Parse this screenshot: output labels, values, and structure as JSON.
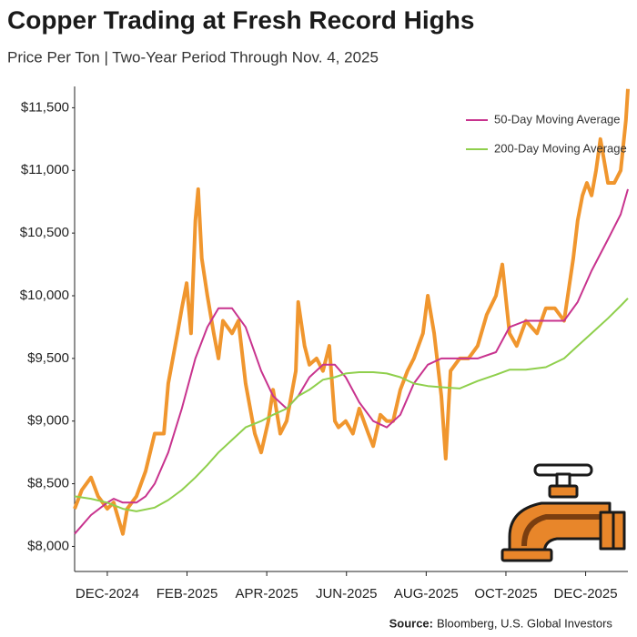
{
  "chart_data": {
    "type": "line",
    "title": "Copper Trading at Fresh Record Highs",
    "subtitle": "Price Per Ton | Two-Year Period Through Nov. 4, 2025",
    "source_label": "Source:",
    "source": "Bloomberg, U.S. Global Investors",
    "xlim": [
      -0.82,
      13.06
    ],
    "xticks": [
      {
        "value": 0,
        "label": "DEC-2024"
      },
      {
        "value": 2,
        "label": "FEB-2025"
      },
      {
        "value": 4,
        "label": "APR-2025"
      },
      {
        "value": 6,
        "label": "JUN-2025"
      },
      {
        "value": 8,
        "label": "AUG-2025"
      },
      {
        "value": 10,
        "label": "OCT-2025"
      },
      {
        "value": 12,
        "label": "DEC-2025"
      }
    ],
    "ylim": [
      7800,
      11670
    ],
    "yticks": [
      {
        "value": 8000,
        "label": "$8,000"
      },
      {
        "value": 8500,
        "label": "$8,500"
      },
      {
        "value": 9000,
        "label": "$9,000"
      },
      {
        "value": 9500,
        "label": "$9,500"
      },
      {
        "value": 10000,
        "label": "$10,000"
      },
      {
        "value": 10500,
        "label": "$10,500"
      },
      {
        "value": 11000,
        "label": "$11,000"
      },
      {
        "value": 11500,
        "label": "$11,500"
      }
    ],
    "grid": false,
    "legend": "top-right",
    "series": [
      {
        "color": "#f0962e",
        "x": [
          -0.82,
          -0.64,
          -0.41,
          -0.23,
          0,
          0.16,
          0.39,
          0.5,
          0.73,
          0.96,
          1.19,
          1.42,
          1.53,
          1.76,
          1.87,
          1.99,
          2.1,
          2.21,
          2.28,
          2.37,
          2.51,
          2.67,
          2.79,
          2.9,
          3.13,
          3.29,
          3.47,
          3.7,
          3.86,
          4.04,
          4.16,
          4.34,
          4.5,
          4.73,
          4.79,
          4.95,
          5.07,
          5.25,
          5.41,
          5.57,
          5.71,
          5.8,
          5.98,
          6.16,
          6.32,
          6.55,
          6.67,
          6.85,
          7.01,
          7.17,
          7.35,
          7.53,
          7.69,
          7.92,
          8.04,
          8.2,
          8.38,
          8.49,
          8.61,
          8.84,
          9.06,
          9.29,
          9.52,
          9.75,
          9.91,
          10.09,
          10.27,
          10.5,
          10.78,
          11.0,
          11.23,
          11.46,
          11.69,
          11.8,
          11.92,
          12.03,
          12.15,
          12.26,
          12.37,
          12.56,
          12.72,
          12.88,
          13.01,
          13.06
        ],
        "values": [
          8300,
          8450,
          8550,
          8400,
          8300,
          8350,
          8100,
          8300,
          8400,
          8600,
          8900,
          8900,
          9300,
          9700,
          9900,
          10100,
          9700,
          10600,
          10850,
          10300,
          10000,
          9700,
          9500,
          9800,
          9700,
          9800,
          9300,
          8900,
          8750,
          9000,
          9250,
          8900,
          9000,
          9400,
          9950,
          9600,
          9450,
          9500,
          9400,
          9600,
          9000,
          8950,
          9000,
          8900,
          9100,
          8900,
          8800,
          9050,
          9000,
          9000,
          9250,
          9400,
          9500,
          9700,
          10000,
          9700,
          9200,
          8700,
          9400,
          9500,
          9500,
          9600,
          9850,
          10000,
          10250,
          9700,
          9600,
          9800,
          9700,
          9900,
          9900,
          9800,
          10300,
          10600,
          10800,
          10900,
          10800,
          11000,
          11250,
          10900,
          10900,
          11000,
          11400,
          11650
        ]
      },
      {
        "name": "50-Day Moving Average",
        "color": "#c8338e",
        "x": [
          -0.82,
          -0.41,
          0,
          0.16,
          0.39,
          0.73,
          0.96,
          1.19,
          1.53,
          1.87,
          2.21,
          2.51,
          2.79,
          3.13,
          3.47,
          3.86,
          4.16,
          4.5,
          4.79,
          5.07,
          5.41,
          5.71,
          5.98,
          6.32,
          6.67,
          7.01,
          7.35,
          7.69,
          8.04,
          8.38,
          8.84,
          9.29,
          9.75,
          10.09,
          10.5,
          11.0,
          11.46,
          11.8,
          12.15,
          12.56,
          12.88,
          13.06
        ],
        "values": [
          8100,
          8250,
          8350,
          8380,
          8350,
          8350,
          8400,
          8500,
          8750,
          9100,
          9500,
          9750,
          9900,
          9900,
          9750,
          9400,
          9200,
          9100,
          9200,
          9350,
          9450,
          9450,
          9350,
          9150,
          9000,
          8950,
          9050,
          9300,
          9450,
          9500,
          9500,
          9500,
          9550,
          9750,
          9800,
          9800,
          9800,
          9950,
          10200,
          10450,
          10650,
          10850
        ]
      },
      {
        "name": "200-Day Moving Average",
        "color": "#8fcf4c",
        "x": [
          -0.82,
          -0.41,
          0,
          0.39,
          0.73,
          1.19,
          1.53,
          1.87,
          2.21,
          2.51,
          2.79,
          3.13,
          3.47,
          3.86,
          4.16,
          4.5,
          4.79,
          5.07,
          5.41,
          5.71,
          5.98,
          6.32,
          6.67,
          7.01,
          7.35,
          7.69,
          8.04,
          8.38,
          8.84,
          9.29,
          9.75,
          10.09,
          10.5,
          11.0,
          11.46,
          11.8,
          12.15,
          12.56,
          12.88,
          13.06
        ],
        "values": [
          8400,
          8380,
          8350,
          8300,
          8280,
          8310,
          8370,
          8450,
          8550,
          8650,
          8750,
          8850,
          8950,
          9000,
          9050,
          9100,
          9200,
          9250,
          9330,
          9350,
          9380,
          9390,
          9390,
          9380,
          9350,
          9300,
          9280,
          9270,
          9260,
          9320,
          9370,
          9410,
          9410,
          9430,
          9500,
          9600,
          9700,
          9820,
          9920,
          9980
        ]
      }
    ]
  }
}
